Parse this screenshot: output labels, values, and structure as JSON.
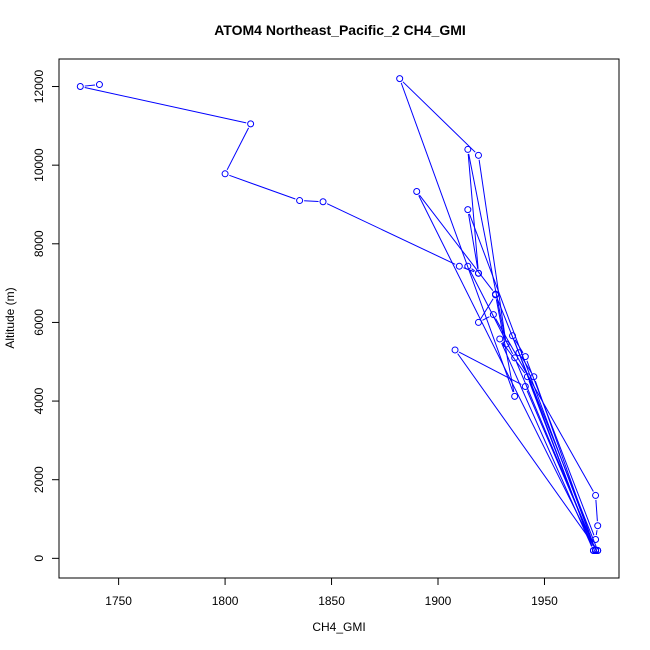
{
  "chart_data": {
    "type": "line",
    "title": "ATOM4 Northeast_Pacific_2 CH4_GMI",
    "xlabel": "CH4_GMI",
    "ylabel": "Altitude (m)",
    "xlim": [
      1722,
      1985
    ],
    "ylim": [
      -500,
      12700
    ],
    "xticks": [
      1750,
      1800,
      1850,
      1900,
      1950
    ],
    "yticks": [
      0,
      2000,
      4000,
      6000,
      8000,
      10000,
      12000
    ],
    "color": "#0000ff",
    "grid": false,
    "series": [
      {
        "x": [
          1741,
          1732,
          1812,
          1800,
          1835,
          1846,
          1910,
          1919,
          1914,
          1932,
          1919,
          1882,
          1936,
          1927,
          1919,
          1926,
          1974,
          1975,
          1974,
          1941,
          1935,
          1973,
          1929,
          1942,
          1973,
          1938,
          1945,
          1974,
          1941,
          1908,
          1975,
          1927,
          1890,
          1974,
          1914,
          1919,
          1914,
          1936,
          1974,
          1975,
          1974,
          1974
        ],
        "y": [
          12050,
          12000,
          11050,
          9780,
          9100,
          9070,
          7430,
          7250,
          10400,
          5450,
          10250,
          12200,
          4120,
          6700,
          6000,
          6200,
          1600,
          830,
          480,
          5130,
          5660,
          200,
          5580,
          4620,
          200,
          5230,
          4620,
          200,
          4370,
          5300,
          200,
          6720,
          9330,
          200,
          8870,
          7250,
          7430,
          5100,
          200,
          200,
          220,
          200
        ]
      }
    ]
  }
}
